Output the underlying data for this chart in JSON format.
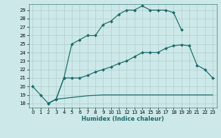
{
  "xlabel": "Humidex (Indice chaleur)",
  "bg_color": "#cde8e8",
  "grid_color": "#b0cccc",
  "line_color": "#1a6b6b",
  "xlim": [
    -0.5,
    23.5
  ],
  "ylim": [
    17.5,
    29.7
  ],
  "yticks": [
    18,
    19,
    20,
    21,
    22,
    23,
    24,
    25,
    26,
    27,
    28,
    29
  ],
  "xticks": [
    0,
    1,
    2,
    3,
    4,
    5,
    6,
    7,
    8,
    9,
    10,
    11,
    12,
    13,
    14,
    15,
    16,
    17,
    18,
    19,
    20,
    21,
    22,
    23
  ],
  "line1_x": [
    0,
    1,
    2,
    3,
    4,
    5,
    6,
    7,
    8,
    9,
    10,
    11,
    12,
    13,
    14,
    15,
    16,
    17,
    18,
    19
  ],
  "line1_y": [
    20,
    19,
    18,
    18.5,
    21,
    25,
    25.5,
    26,
    26,
    27.3,
    27.7,
    28.5,
    29,
    29,
    29.5,
    29,
    29,
    29,
    28.7,
    26.7
  ],
  "line2_x": [
    2,
    3,
    4,
    5,
    6,
    7,
    8,
    9,
    10,
    11,
    12,
    13,
    14,
    15,
    16,
    17,
    18,
    19,
    20,
    21,
    22,
    23
  ],
  "line2_y": [
    18,
    18.5,
    18.6,
    18.7,
    18.8,
    18.9,
    18.95,
    19,
    19,
    19,
    19,
    19,
    19,
    19,
    19,
    19,
    19,
    19,
    19,
    19,
    19,
    19
  ],
  "line3_x": [
    2,
    3,
    4,
    5,
    6,
    7,
    8,
    9,
    10,
    11,
    12,
    13,
    14,
    15,
    16,
    17,
    18,
    19,
    20,
    21,
    22,
    23
  ],
  "line3_y": [
    18,
    18.5,
    21,
    21,
    21,
    21.3,
    21.7,
    22,
    22.3,
    22.7,
    23,
    23.5,
    24,
    24,
    24,
    24.5,
    24.8,
    24.9,
    24.8,
    22.5,
    22,
    21
  ],
  "marker": "D",
  "markersize": 2.0,
  "linewidth": 0.9
}
